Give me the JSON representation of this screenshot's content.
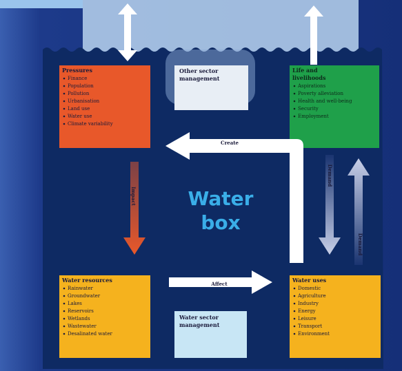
{
  "boxes": {
    "pressures": {
      "title": "Pressures",
      "items": [
        "Finance",
        "Population",
        "Pollution",
        "Urbanisation",
        "Land use",
        "Water use",
        "Climate variability"
      ]
    },
    "other_sector": {
      "title": "Other sector management"
    },
    "livelihoods": {
      "title": "Life and livelihoods",
      "items": [
        "Aspirations",
        "Poverty alleviation",
        "Health and well-being",
        "Security",
        "Employment"
      ]
    },
    "resources": {
      "title": "Water resources",
      "items": [
        "Rainwater",
        "Groundwater",
        "Lakes",
        "Reservoirs",
        "Wetlands",
        "Wastewater",
        "Desalinated water"
      ]
    },
    "water_sector": {
      "title": "Water sector management"
    },
    "uses": {
      "title": "Water uses",
      "items": [
        "Domestic",
        "Agriculture",
        "Industry",
        "Energy",
        "Leisure",
        "Transport",
        "Environment"
      ]
    }
  },
  "center": [
    "Water",
    "box"
  ],
  "arrows": {
    "impact": "Impact",
    "create": "Create",
    "affect": "Affect",
    "demand_down": "Demand",
    "demand_up": "Demand"
  }
}
